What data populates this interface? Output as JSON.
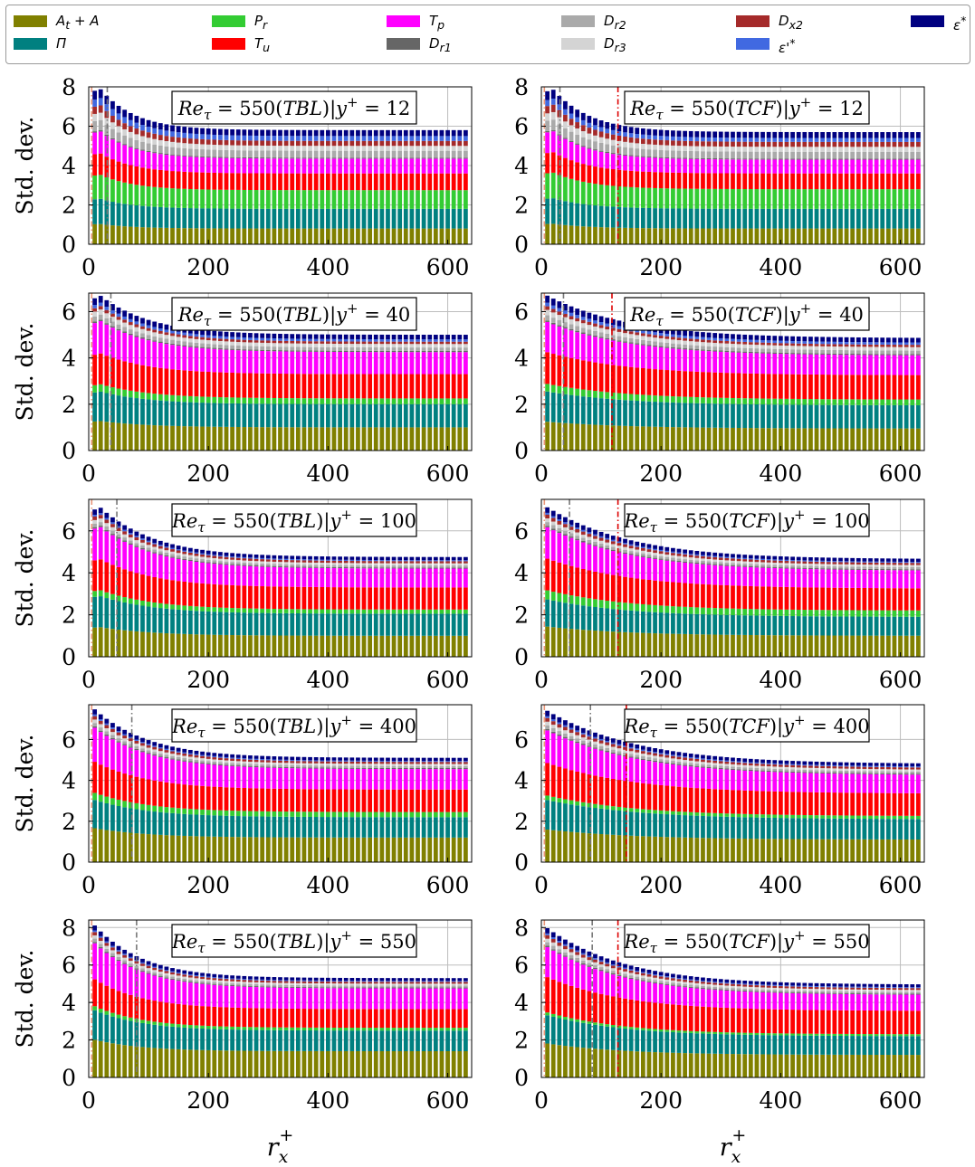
{
  "legend": [
    {
      "key": "A",
      "label": "A_t + A",
      "color": "#808000"
    },
    {
      "key": "Pi",
      "label": "Π",
      "color": "#008080"
    },
    {
      "key": "Pr",
      "label": "P_r",
      "color": "#33cc33"
    },
    {
      "key": "Tu",
      "label": "T_u",
      "color": "#ff0000"
    },
    {
      "key": "Tp",
      "label": "T_p",
      "color": "#ff00ff"
    },
    {
      "key": "Dr1",
      "label": "D_r1",
      "color": "#666666"
    },
    {
      "key": "Dr2",
      "label": "D_r2",
      "color": "#aaaaaa"
    },
    {
      "key": "Dr3",
      "label": "D_r3",
      "color": "#d4d4d4"
    },
    {
      "key": "Dx2",
      "label": "D_x2",
      "color": "#a52a2a"
    },
    {
      "key": "epsp",
      "label": "ε'*",
      "color": "#4169e1"
    },
    {
      "key": "eps",
      "label": "ε*",
      "color": "#000080"
    }
  ],
  "chart_data": [
    {
      "type": "bar",
      "stacked": true,
      "row": 0,
      "col": 0,
      "title": "Re_τ = 550(TBL)|y+ = 12",
      "ylabel": "Std. dev.",
      "xlabel": "",
      "xlim": [
        0,
        640
      ],
      "ylim": [
        0,
        8
      ],
      "yticks": [
        0,
        2,
        4,
        6,
        8
      ],
      "xticks": [
        0,
        200,
        400,
        600
      ],
      "grid": true,
      "vlines": [
        {
          "x": 5,
          "color": "#e9967a"
        },
        {
          "x": 31,
          "color": "#777777"
        }
      ],
      "tail": {
        "A": 0.8,
        "Pi": 1.0,
        "Pr": 0.95,
        "Tu": 0.85,
        "Tp": 0.75,
        "Dr1": 0.05,
        "Dr2": 0.35,
        "Dr3": 0.25,
        "Dx2": 0.25,
        "epsp": 0.25,
        "eps": 0.3
      },
      "peak_total": 8.0,
      "peak_x": 18,
      "decay": 55
    },
    {
      "type": "bar",
      "stacked": true,
      "row": 0,
      "col": 1,
      "title": "Re_τ = 550(TCF)|y+ = 12",
      "ylabel": "",
      "xlabel": "",
      "xlim": [
        0,
        640
      ],
      "ylim": [
        0,
        8
      ],
      "yticks": [
        0,
        2,
        4,
        6,
        8
      ],
      "xticks": [
        0,
        200,
        400,
        600
      ],
      "grid": true,
      "vlines": [
        {
          "x": 5,
          "color": "#e9967a"
        },
        {
          "x": 31,
          "color": "#777777"
        },
        {
          "x": 128,
          "color": "#dd0000"
        }
      ],
      "tail": {
        "A": 0.8,
        "Pi": 1.0,
        "Pr": 1.0,
        "Tu": 0.8,
        "Tp": 0.7,
        "Dr1": 0.05,
        "Dr2": 0.35,
        "Dr3": 0.25,
        "Dx2": 0.25,
        "epsp": 0.2,
        "eps": 0.3
      },
      "peak_total": 8.0,
      "peak_x": 18,
      "decay": 60
    },
    {
      "type": "bar",
      "stacked": true,
      "row": 1,
      "col": 0,
      "title": "Re_τ = 550(TBL)|y+ = 40",
      "ylabel": "Std. dev.",
      "xlabel": "",
      "xlim": [
        0,
        640
      ],
      "ylim": [
        0,
        6.8
      ],
      "yticks": [
        0,
        2,
        4,
        6
      ],
      "xticks": [
        0,
        200,
        400,
        600
      ],
      "grid": true,
      "vlines": [
        {
          "x": 5,
          "color": "#e9967a"
        },
        {
          "x": 37,
          "color": "#777777"
        }
      ],
      "tail": {
        "A": 1.0,
        "Pi": 1.0,
        "Pr": 0.25,
        "Tu": 1.05,
        "Tp": 0.95,
        "Dr1": 0.05,
        "Dr2": 0.15,
        "Dr3": 0.15,
        "Dx2": 0.1,
        "epsp": 0.1,
        "eps": 0.2
      },
      "peak_total": 6.8,
      "peak_x": 18,
      "decay": 80
    },
    {
      "type": "bar",
      "stacked": true,
      "row": 1,
      "col": 1,
      "title": "Re_τ = 550(TCF)|y+ = 40",
      "ylabel": "",
      "xlabel": "",
      "xlim": [
        0,
        640
      ],
      "ylim": [
        0,
        6.8
      ],
      "yticks": [
        0,
        2,
        4,
        6
      ],
      "xticks": [
        0,
        200,
        400,
        600
      ],
      "grid": true,
      "vlines": [
        {
          "x": 5,
          "color": "#e9967a"
        },
        {
          "x": 37,
          "color": "#777777"
        },
        {
          "x": 118,
          "color": "#dd0000"
        }
      ],
      "tail": {
        "A": 0.95,
        "Pi": 1.0,
        "Pr": 0.25,
        "Tu": 1.05,
        "Tp": 0.85,
        "Dr1": 0.05,
        "Dr2": 0.15,
        "Dr3": 0.15,
        "Dx2": 0.1,
        "epsp": 0.1,
        "eps": 0.2
      },
      "peak_total": 6.8,
      "peak_x": 10,
      "decay": 130
    },
    {
      "type": "bar",
      "stacked": true,
      "row": 2,
      "col": 0,
      "title": "Re_τ = 550(TBL)|y+ = 100",
      "ylabel": "Std. dev.",
      "xlabel": "",
      "xlim": [
        0,
        640
      ],
      "ylim": [
        0,
        7.5
      ],
      "yticks": [
        0,
        2,
        4,
        6
      ],
      "xticks": [
        0,
        200,
        400,
        600
      ],
      "grid": true,
      "vlines": [
        {
          "x": 5,
          "color": "#e9967a"
        },
        {
          "x": 47,
          "color": "#777777"
        }
      ],
      "tail": {
        "A": 1.0,
        "Pi": 1.05,
        "Pr": 0.2,
        "Tu": 1.05,
        "Tp": 0.9,
        "Dr1": 0.05,
        "Dr2": 0.1,
        "Dr3": 0.1,
        "Dx2": 0.1,
        "epsp": 0.05,
        "eps": 0.15
      },
      "peak_total": 7.4,
      "peak_x": 18,
      "decay": 85
    },
    {
      "type": "bar",
      "stacked": true,
      "row": 2,
      "col": 1,
      "title": "Re_τ = 550(TCF)|y+ = 100",
      "ylabel": "",
      "xlabel": "",
      "xlim": [
        0,
        640
      ],
      "ylim": [
        0,
        7.5
      ],
      "yticks": [
        0,
        2,
        4,
        6
      ],
      "xticks": [
        0,
        200,
        400,
        600
      ],
      "grid": true,
      "vlines": [
        {
          "x": 5,
          "color": "#e9967a"
        },
        {
          "x": 47,
          "color": "#777777"
        },
        {
          "x": 128,
          "color": "#dd0000"
        }
      ],
      "tail": {
        "A": 1.0,
        "Pi": 0.9,
        "Pr": 0.3,
        "Tu": 1.05,
        "Tp": 0.85,
        "Dr1": 0.05,
        "Dr2": 0.1,
        "Dr3": 0.1,
        "Dx2": 0.1,
        "epsp": 0.05,
        "eps": 0.15
      },
      "peak_total": 7.4,
      "peak_x": 10,
      "decay": 130
    },
    {
      "type": "bar",
      "stacked": true,
      "row": 3,
      "col": 0,
      "title": "Re_τ = 550(TBL)|y+ = 400",
      "ylabel": "Std. dev.",
      "xlabel": "",
      "xlim": [
        0,
        640
      ],
      "ylim": [
        0,
        7.7
      ],
      "yticks": [
        0,
        2,
        4,
        6
      ],
      "xticks": [
        0,
        200,
        400,
        600
      ],
      "grid": true,
      "vlines": [
        {
          "x": 5,
          "color": "#e9967a"
        },
        {
          "x": 72,
          "color": "#777777"
        }
      ],
      "tail": {
        "A": 1.2,
        "Pi": 1.0,
        "Pr": 0.25,
        "Tu": 1.1,
        "Tp": 1.0,
        "Dr1": 0.05,
        "Dr2": 0.1,
        "Dr3": 0.1,
        "Dx2": 0.1,
        "epsp": 0.05,
        "eps": 0.15
      },
      "peak_total": 7.7,
      "peak_x": 10,
      "decay": 85
    },
    {
      "type": "bar",
      "stacked": true,
      "row": 3,
      "col": 1,
      "title": "Re_τ = 550(TCF)|y+ = 400",
      "ylabel": "",
      "xlabel": "",
      "xlim": [
        0,
        640
      ],
      "ylim": [
        0,
        7.7
      ],
      "yticks": [
        0,
        2,
        4,
        6
      ],
      "xticks": [
        0,
        200,
        400,
        600
      ],
      "grid": true,
      "vlines": [
        {
          "x": 5,
          "color": "#e9967a"
        },
        {
          "x": 82,
          "color": "#777777"
        },
        {
          "x": 142,
          "color": "#dd0000"
        }
      ],
      "tail": {
        "A": 1.1,
        "Pi": 1.0,
        "Pr": 0.15,
        "Tu": 1.1,
        "Tp": 0.9,
        "Dr1": 0.05,
        "Dr2": 0.1,
        "Dr3": 0.1,
        "Dx2": 0.1,
        "epsp": 0.05,
        "eps": 0.15
      },
      "peak_total": 7.7,
      "peak_x": 10,
      "decay": 140
    },
    {
      "type": "bar",
      "stacked": true,
      "row": 4,
      "col": 0,
      "title": "Re_τ = 550(TBL)|y+ = 550",
      "ylabel": "Std. dev.",
      "xlabel": "r_x^+",
      "xlim": [
        0,
        640
      ],
      "ylim": [
        0,
        8.4
      ],
      "yticks": [
        0,
        2,
        4,
        6,
        8
      ],
      "xticks": [
        0,
        200,
        400,
        600
      ],
      "grid": true,
      "vlines": [
        {
          "x": 5,
          "color": "#e9967a"
        },
        {
          "x": 80,
          "color": "#777777"
        }
      ],
      "tail": {
        "A": 1.4,
        "Pi": 1.1,
        "Pr": 0.15,
        "Tu": 1.0,
        "Tp": 1.1,
        "Dr1": 0.05,
        "Dr2": 0.1,
        "Dr3": 0.1,
        "Dx2": 0.1,
        "epsp": 0.05,
        "eps": 0.15
      },
      "peak_total": 8.4,
      "peak_x": 10,
      "decay": 75
    },
    {
      "type": "bar",
      "stacked": true,
      "row": 4,
      "col": 1,
      "title": "Re_τ = 550(TCF)|y+ = 550",
      "ylabel": "",
      "xlabel": "r_x^+",
      "xlim": [
        0,
        640
      ],
      "ylim": [
        0,
        8.4
      ],
      "yticks": [
        0,
        2,
        4,
        6,
        8
      ],
      "xticks": [
        0,
        200,
        400,
        600
      ],
      "grid": true,
      "vlines": [
        {
          "x": 5,
          "color": "#e9967a"
        },
        {
          "x": 85,
          "color": "#777777"
        },
        {
          "x": 128,
          "color": "#dd0000"
        }
      ],
      "tail": {
        "A": 1.2,
        "Pi": 1.0,
        "Pr": 0.1,
        "Tu": 1.25,
        "Tp": 0.85,
        "Dr1": 0.05,
        "Dr2": 0.1,
        "Dr3": 0.1,
        "Dx2": 0.1,
        "epsp": 0.05,
        "eps": 0.15
      },
      "peak_total": 8.4,
      "peak_x": 10,
      "decay": 120
    }
  ]
}
